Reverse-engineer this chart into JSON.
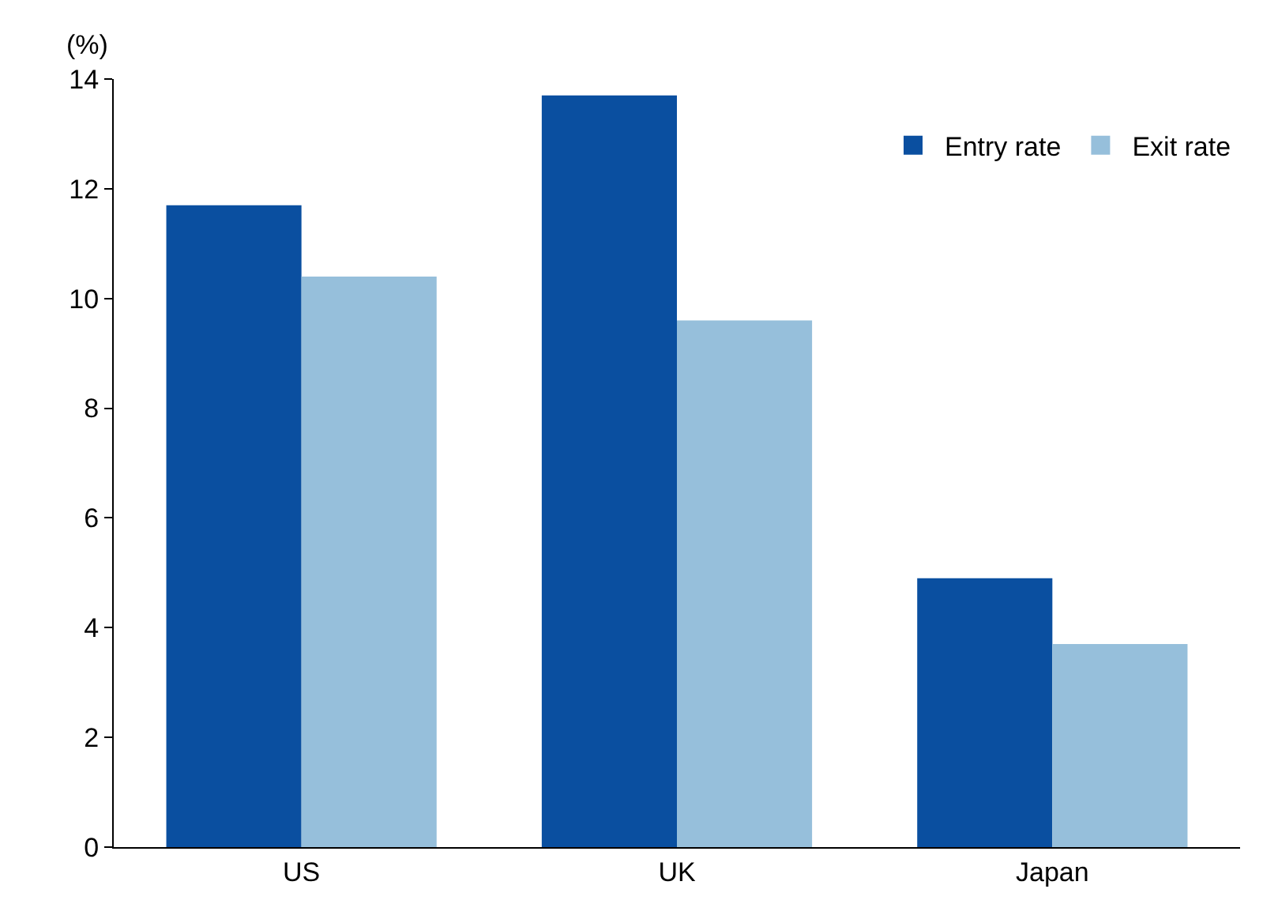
{
  "chart_data": {
    "type": "bar",
    "ylabel": "(%)",
    "categories": [
      "US",
      "UK",
      "Japan"
    ],
    "series": [
      {
        "name": "Entry rate",
        "color": "#0a4fa0",
        "values": [
          11.7,
          13.7,
          4.9
        ]
      },
      {
        "name": "Exit rate",
        "color": "#96bfdb",
        "values": [
          10.4,
          9.6,
          3.7
        ]
      }
    ],
    "ylim": [
      0,
      14
    ],
    "yticks": [
      0,
      2,
      4,
      6,
      8,
      10,
      12,
      14
    ],
    "legend": "top right"
  }
}
